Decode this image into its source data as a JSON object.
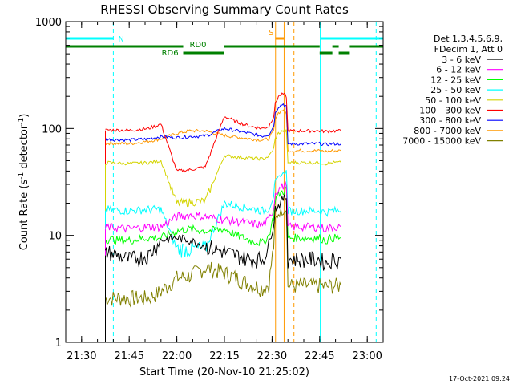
{
  "chart_data": {
    "type": "line",
    "title": "RHESSI Observing Summary Count Rates",
    "xlabel": "Start Time (20-Nov-10 21:25:02)",
    "ylabel": "Count Rate (s",
    "ylabel_sup1": "-1",
    "ylabel_mid": " detector",
    "ylabel_sup2": "-1",
    "ylabel_end": ")",
    "x_unit": "minutes after 21:25:02",
    "xlim": [
      0,
      100
    ],
    "ylim": [
      1,
      1000
    ],
    "y_scale": "log",
    "x_ticks": [
      {
        "value": 5,
        "label": "21:30"
      },
      {
        "value": 20,
        "label": "21:45"
      },
      {
        "value": 35,
        "label": "22:00"
      },
      {
        "value": 50,
        "label": "22:15"
      },
      {
        "value": 65,
        "label": "22:30"
      },
      {
        "value": 80,
        "label": "22:45"
      },
      {
        "value": 95,
        "label": "23:00"
      }
    ],
    "y_ticks": [
      {
        "value": 1,
        "label": "1"
      },
      {
        "value": 10,
        "label": "10"
      },
      {
        "value": 100,
        "label": "100"
      },
      {
        "value": 1000,
        "label": "1000"
      }
    ],
    "legend_header": [
      "Det 1,3,4,5,6,9,",
      "FDecim 1, Att 0"
    ],
    "legend_placement": "right",
    "series": [
      {
        "name": "3 - 6 keV",
        "color": "#000000",
        "x": [
          12.5,
          13,
          20,
          26,
          30,
          35,
          39,
          44,
          50,
          54,
          58,
          62,
          64,
          65.5,
          66,
          67,
          68.5,
          69.5,
          70,
          77,
          77.6,
          80,
          82,
          84,
          86.8
        ],
        "y": [
          6.5,
          7,
          6,
          6.5,
          9,
          9.5,
          9,
          8,
          7,
          6.5,
          6,
          6,
          8,
          13,
          18,
          19,
          22,
          23,
          6,
          6,
          6,
          6,
          5.5,
          6,
          6
        ]
      },
      {
        "name": "6 - 12 keV",
        "color": "#ff00ff",
        "x": [
          12.5,
          13,
          20,
          26,
          30,
          35,
          39,
          44,
          50,
          54,
          58,
          62,
          64,
          65.5,
          66,
          67,
          68.5,
          69.5,
          70,
          77,
          77.6,
          80,
          82,
          84,
          86.8
        ],
        "y": [
          11.5,
          12,
          11.5,
          12,
          12,
          15,
          15.5,
          15,
          14,
          13.5,
          13,
          12.5,
          14,
          18,
          25,
          27,
          29,
          30,
          12,
          12,
          12,
          12,
          11.5,
          12,
          12
        ]
      },
      {
        "name": "12 - 25 keV",
        "color": "#00ff00",
        "x": [
          12.5,
          13,
          20,
          26,
          30,
          35,
          39,
          44,
          50,
          54,
          58,
          62,
          64,
          65.5,
          66,
          67,
          68.5,
          69.5,
          70,
          77,
          77.6,
          80,
          82,
          84,
          86.8
        ],
        "y": [
          9,
          9.2,
          9,
          9.5,
          9.5,
          11,
          11.5,
          11,
          11.5,
          10,
          9,
          8.5,
          10,
          15,
          22,
          24,
          26,
          27,
          9.5,
          9.5,
          9.5,
          9.5,
          9,
          9.5,
          9.5
        ]
      },
      {
        "name": "25 - 50 keV",
        "color": "#00ffff",
        "x": [
          12.5,
          13,
          20,
          26,
          30,
          35,
          39,
          44,
          50,
          54,
          58,
          62,
          64,
          65.5,
          66,
          67,
          68.5,
          69.5,
          70,
          77,
          77.6,
          80,
          82,
          84,
          86.8
        ],
        "y": [
          17,
          17.5,
          17,
          17.5,
          17.5,
          7.5,
          7.5,
          7.5,
          20,
          19,
          18,
          17,
          18,
          24,
          32,
          35,
          38,
          40,
          17,
          17,
          17,
          17,
          16.5,
          17,
          17
        ]
      },
      {
        "name": "50 - 100 keV",
        "color": "#d4d400",
        "x": [
          12.5,
          13,
          20,
          26,
          30,
          35,
          39,
          44,
          50,
          54,
          58,
          62,
          64,
          65.5,
          66,
          67,
          68.5,
          69.5,
          70,
          77,
          77.6,
          80,
          82,
          84,
          86.8
        ],
        "y": [
          47,
          48,
          47,
          48,
          50,
          20,
          20.5,
          21,
          56,
          54,
          53,
          52,
          55,
          65,
          80,
          90,
          95,
          95,
          48,
          48,
          48,
          48,
          47,
          48,
          48
        ]
      },
      {
        "name": "100 - 300 keV",
        "color": "#ff0000",
        "x": [
          12.5,
          13,
          20,
          26,
          30,
          35,
          39,
          44,
          50,
          54,
          58,
          62,
          64,
          65.5,
          66,
          67,
          68.5,
          69.5,
          70,
          77,
          77.6,
          80,
          82,
          84,
          86.8
        ],
        "y": [
          96,
          97,
          96,
          100,
          110,
          40,
          41,
          44,
          130,
          115,
          105,
          100,
          105,
          130,
          170,
          200,
          210,
          200,
          95,
          95,
          95,
          95,
          94,
          95,
          95
        ]
      },
      {
        "name": "300 - 800 keV",
        "color": "#0000ff",
        "x": [
          12.5,
          13,
          20,
          26,
          30,
          35,
          39,
          44,
          50,
          54,
          58,
          62,
          64,
          65.5,
          66,
          67,
          68.5,
          69.5,
          70,
          77,
          77.6,
          80,
          82,
          84,
          86.8
        ],
        "y": [
          78,
          79,
          78,
          80,
          84,
          82,
          84,
          85,
          100,
          95,
          90,
          85,
          88,
          105,
          140,
          160,
          170,
          160,
          72,
          72,
          72,
          72,
          71,
          72,
          72
        ]
      },
      {
        "name": "800 - 7000 keV",
        "color": "#ff9900",
        "x": [
          12.5,
          13,
          20,
          26,
          30,
          35,
          39,
          44,
          50,
          54,
          58,
          62,
          64,
          65.5,
          66,
          67,
          68.5,
          69.5,
          70,
          77,
          77.6,
          80,
          82,
          84,
          86.8
        ],
        "y": [
          72,
          73,
          72,
          76,
          80,
          90,
          95,
          95,
          86,
          83,
          80,
          78,
          80,
          95,
          125,
          140,
          150,
          140,
          62,
          62,
          62,
          62,
          61,
          62,
          62
        ]
      },
      {
        "name": "7000 - 15000 keV",
        "color": "#808000",
        "x": [
          12.5,
          13,
          20,
          26,
          30,
          35,
          39,
          44,
          50,
          54,
          58,
          62,
          64,
          65.5,
          66,
          67,
          68.5,
          69.5,
          70,
          77,
          77.6,
          80,
          82,
          84,
          86.8
        ],
        "y": [
          2.5,
          2.6,
          2.6,
          2.6,
          3,
          4,
          4.2,
          5,
          4.5,
          4,
          3.5,
          3.2,
          3.5,
          8,
          14,
          16,
          17,
          18,
          3.4,
          3.4,
          3.4,
          3.4,
          3.3,
          3.4,
          3.4
        ]
      }
    ],
    "state_bars": [
      {
        "label": "N",
        "color": "#00ffff",
        "row": 1,
        "segments": [
          [
            0,
            15
          ],
          [
            80.2,
            100
          ]
        ]
      },
      {
        "label": "S",
        "color": "#ff9900",
        "row": 1,
        "segments": [
          [
            66,
            68.8
          ]
        ]
      },
      {
        "label": "RD0",
        "color": "#008000",
        "row": 2,
        "segments": [
          [
            0,
            37
          ],
          [
            50,
            80
          ],
          [
            84,
            86
          ],
          [
            89.5,
            100
          ]
        ]
      },
      {
        "label": "RD6",
        "color": "#008000",
        "row": 3,
        "segments": [
          [
            37,
            50
          ],
          [
            80,
            84
          ],
          [
            86,
            89.5
          ]
        ]
      }
    ],
    "vlines": [
      {
        "x": 0,
        "color": "#00ffff",
        "style": "solid"
      },
      {
        "x": 15,
        "color": "#00ffff",
        "style": "dashed"
      },
      {
        "x": 80.2,
        "color": "#00ffff",
        "style": "solid"
      },
      {
        "x": 97.8,
        "color": "#00ffff",
        "style": "dashed"
      },
      {
        "x": 66.1,
        "color": "#ff9900",
        "style": "solid"
      },
      {
        "x": 68.8,
        "color": "#ff9900",
        "style": "solid"
      },
      {
        "x": 71.9,
        "color": "#ff9900",
        "style": "dashed"
      }
    ]
  },
  "footer": {
    "timestamp": "17-Oct-2021 09:24"
  }
}
